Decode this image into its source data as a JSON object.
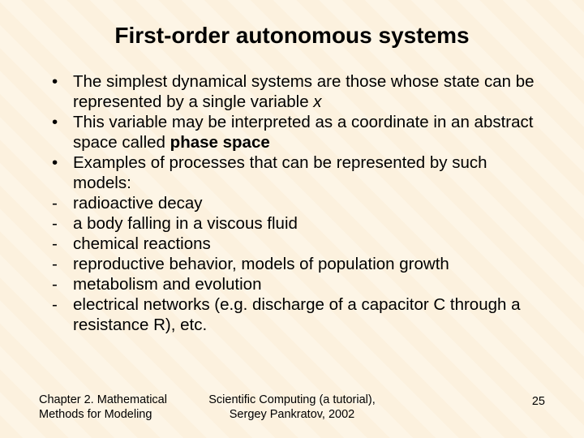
{
  "title": "First-order autonomous systems",
  "bullets": {
    "b0": {
      "marker": "•",
      "pre": "The simplest dynamical systems are those whose state can be represented by a single variable ",
      "italic": "x"
    },
    "b1": {
      "marker": "•",
      "pre": "This variable may be interpreted as a coordinate in an abstract space called ",
      "bold": "phase space"
    },
    "b2": {
      "marker": "•",
      "text": "Examples of processes that can be represented by such models:"
    },
    "b3": {
      "marker": "-",
      "text": "radioactive decay"
    },
    "b4": {
      "marker": "-",
      "text": "a body falling in a viscous fluid"
    },
    "b5": {
      "marker": "-",
      "text": "chemical reactions"
    },
    "b6": {
      "marker": "-",
      "text": "reproductive behavior, models of population growth"
    },
    "b7": {
      "marker": "-",
      "text": "metabolism and evolution"
    },
    "b8": {
      "marker": "-",
      "text": "electrical networks (e.g. discharge of a capacitor C through a resistance R), etc."
    }
  },
  "footer": {
    "left_line1": "Chapter 2. Mathematical",
    "left_line2": "Methods for Modeling",
    "center_line1": "Scientific Computing (a tutorial),",
    "center_line2": "Sergey Pankratov, 2002",
    "page": "25"
  },
  "colors": {
    "background": "#fdf5e6",
    "text": "#000000"
  }
}
